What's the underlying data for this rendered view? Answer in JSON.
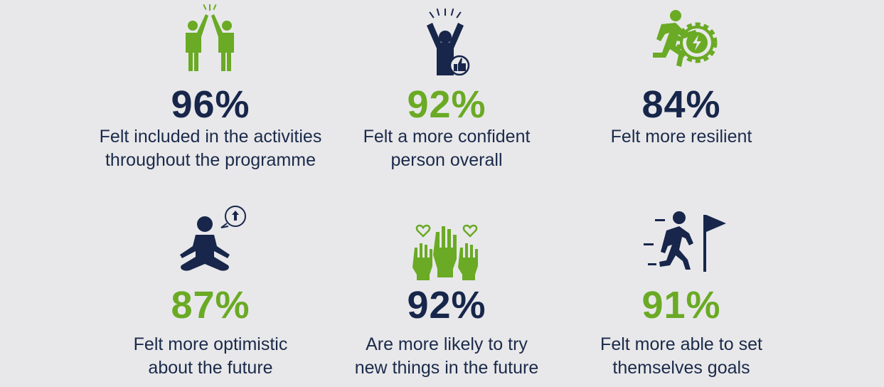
{
  "colors": {
    "navy": "#17264a",
    "green": "#6aaa24",
    "background": "#e8e8ea"
  },
  "stats": [
    {
      "value": "96%",
      "text": [
        "Felt included in the activities",
        "throughout the programme"
      ],
      "icon": "high-five-icon",
      "value_color": "navy"
    },
    {
      "value": "92%",
      "text": [
        "Felt a more confident",
        "person overall"
      ],
      "icon": "confident-person-thumbs-up-icon",
      "value_color": "green"
    },
    {
      "value": "84%",
      "text": [
        "Felt more resilient"
      ],
      "icon": "running-person-gear-icon",
      "value_color": "navy"
    },
    {
      "value": "87%",
      "text": [
        "Felt more optimistic",
        "about the future"
      ],
      "icon": "meditating-person-icon",
      "value_color": "green"
    },
    {
      "value": "92%",
      "text": [
        "Are more likely to try",
        "new things in the future"
      ],
      "icon": "raised-hands-hearts-icon",
      "value_color": "navy"
    },
    {
      "value": "91%",
      "text": [
        "Felt more able to set",
        "themselves goals"
      ],
      "icon": "runner-flag-icon",
      "value_color": "green"
    }
  ]
}
